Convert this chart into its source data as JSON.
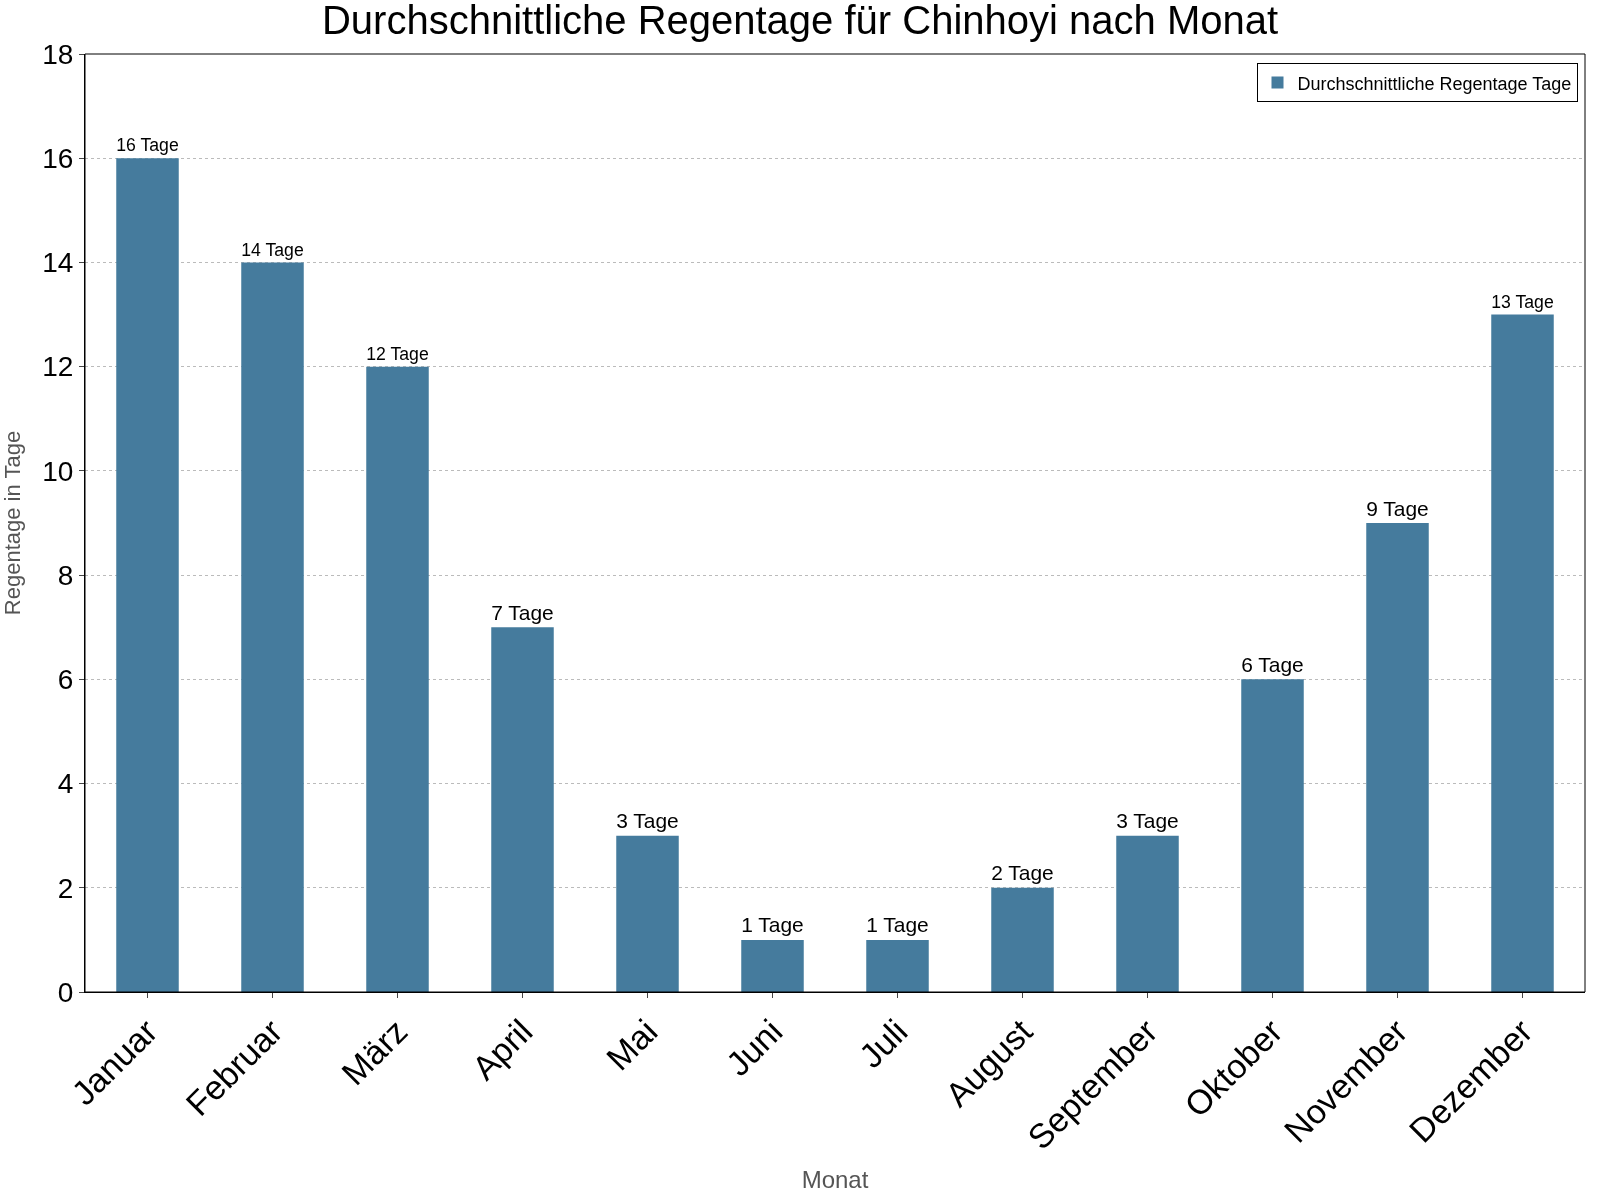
{
  "chart_data": {
    "type": "bar",
    "title": "Durchschnittliche Regentage für Chinhoyi nach Monat",
    "xlabel": "Monat",
    "ylabel": "Regentage in Tage",
    "categories": [
      "Januar",
      "Februar",
      "März",
      "April",
      "Mai",
      "Juni",
      "Juli",
      "August",
      "September",
      "Oktober",
      "November",
      "Dezember"
    ],
    "series": [
      {
        "name": "Durchschnittliche Regentage Tage",
        "color": "#457b9d",
        "values": [
          16,
          14,
          12,
          7,
          3,
          1,
          1,
          2,
          3,
          6,
          9,
          13
        ],
        "value_labels": [
          "16 Tage",
          "14 Tage",
          "12 Tage",
          "7 Tage",
          "3 Tage",
          "1 Tage",
          "1 Tage",
          "2 Tage",
          "3 Tage",
          "6 Tage",
          "9 Tage",
          "13 Tage"
        ]
      }
    ],
    "ylim": [
      0,
      18
    ],
    "yticks": [
      0,
      2,
      4,
      6,
      8,
      10,
      12,
      14,
      16,
      18
    ],
    "grid": "y",
    "legend": "top right"
  }
}
